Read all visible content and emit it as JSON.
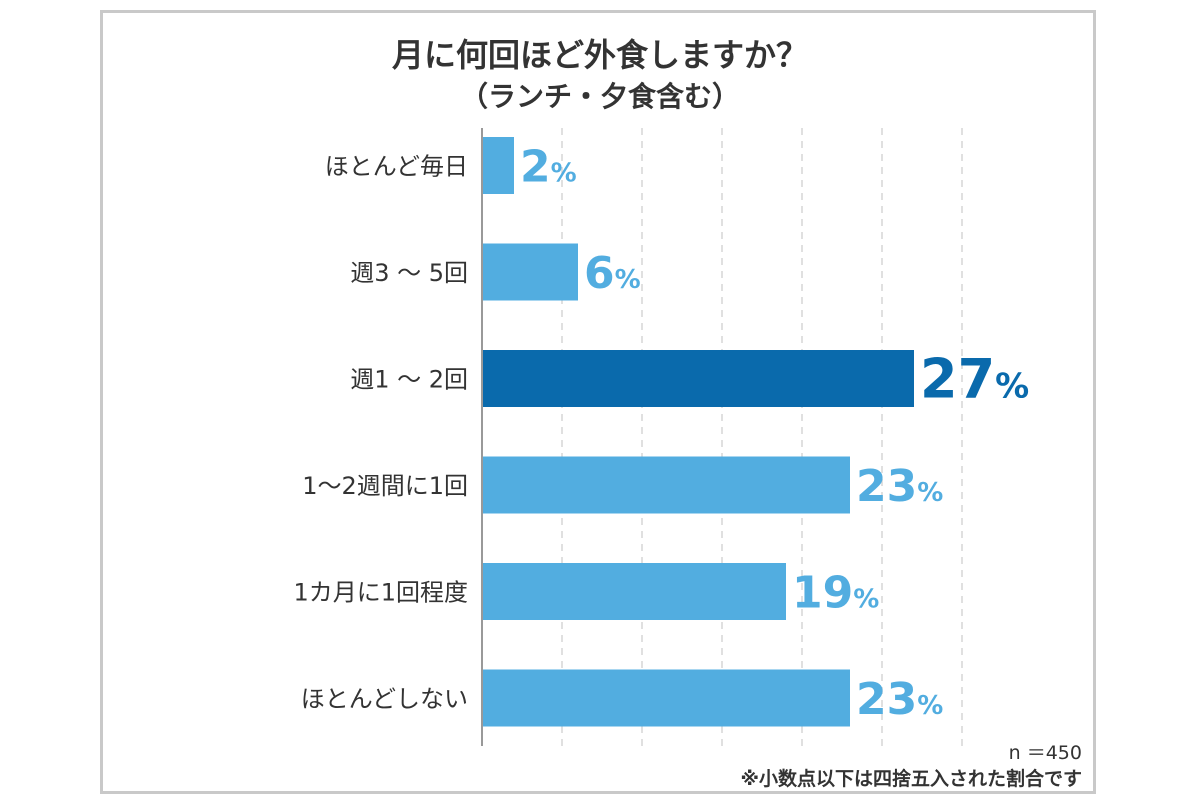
{
  "title": "月に何回ほど外食しますか？",
  "subtitle": "（ランチ・夕食含む）",
  "colors": {
    "bar": "#52ade0",
    "highlight": "#0a6aac",
    "grid": "#d6d6d6",
    "axis": "#999999"
  },
  "chart_data": {
    "type": "bar",
    "orientation": "horizontal",
    "title": "月に何回ほど外食しますか？",
    "subtitle": "（ランチ・夕食含む）",
    "categories": [
      "ほとんど毎日",
      "週3 ～ 5回",
      "週1 ～ 2回",
      "1～2週間に1回",
      "1カ月に1回程度",
      "ほとんどしない"
    ],
    "values": [
      2,
      6,
      27,
      23,
      19,
      23
    ],
    "unit": "%",
    "highlight_index": 2,
    "xlim": [
      0,
      30
    ],
    "grid": true
  },
  "notes": {
    "sample": "n ＝450",
    "rounding": "※小数点以下は四捨五入された割合です"
  }
}
